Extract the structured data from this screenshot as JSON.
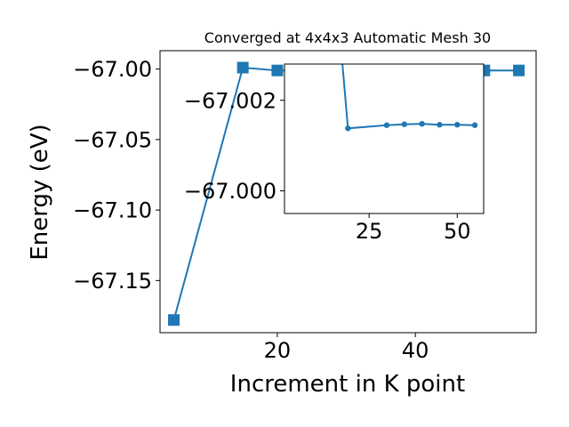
{
  "chart_data": [
    {
      "type": "line",
      "title": "Converged at 4x4x3 Automatic Mesh 30",
      "xlabel": "Increment in K point",
      "ylabel": "Energy (eV)",
      "xlim": [
        3,
        57.5
      ],
      "ylim": [
        -67.187,
        -66.987
      ],
      "xticks": [
        20,
        40
      ],
      "yticks": [
        -67.0,
        -67.05,
        -67.1,
        -67.15
      ],
      "ytick_labels": [
        "−67.00",
        "−67.05",
        "−67.10",
        "−67.15"
      ],
      "marker": "square",
      "grid": false,
      "series": [
        {
          "color": "#1f77b4",
          "x": [
            5,
            15,
            20,
            30,
            35,
            40,
            45,
            50,
            55
          ],
          "y": [
            -67.178,
            -66.999,
            -67.001,
            -67.0005,
            -67.0003,
            -67.0003,
            -67.0003,
            -67.001,
            -67.001
          ]
        }
      ]
    },
    {
      "type": "line",
      "title": "",
      "xlabel": "",
      "ylabel": "",
      "xlim": [
        1,
        57.5
      ],
      "ylim": [
        -66.9995,
        -67.0028
      ],
      "xticks": [
        25,
        50
      ],
      "yticks": [
        -67.002,
        -67.0
      ],
      "ytick_labels": [
        "−67.002",
        "−67.000"
      ],
      "marker": "circle",
      "grid": false,
      "series": [
        {
          "color": "#1f77b4",
          "x": [
            15,
            19,
            30,
            35,
            40,
            45,
            50,
            55
          ],
          "y": [
            -67.005,
            -67.00138,
            -67.00145,
            -67.00147,
            -67.00148,
            -67.00146,
            -67.00146,
            -67.00145
          ]
        }
      ]
    }
  ]
}
